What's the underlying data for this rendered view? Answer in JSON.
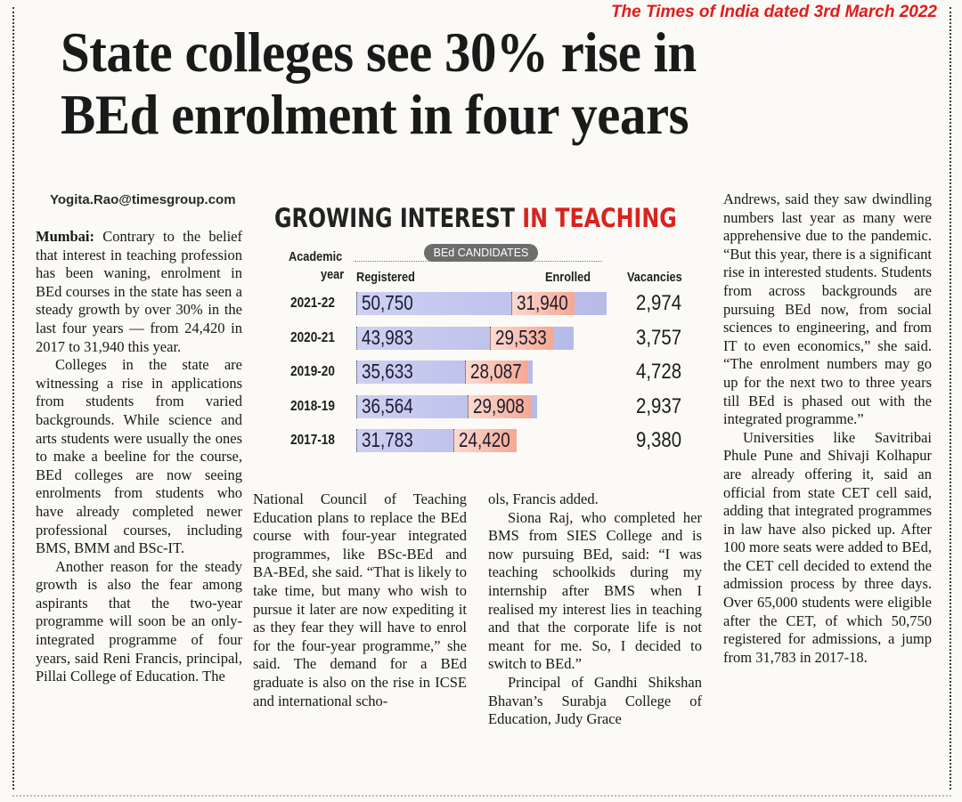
{
  "source_line": "The Times of India dated 3rd March 2022",
  "headline": {
    "line1": "State colleges see 30% rise in",
    "line2": "BEd enrolment in four years"
  },
  "byline": "Yogita.Rao@timesgroup.com",
  "chart_data": {
    "type": "bar",
    "title_part1": "GROWING INTEREST",
    "title_part2": " IN TEACHING",
    "group_label": "BEd CANDIDATES",
    "col_headers": {
      "academic": "Academic",
      "year": "year",
      "registered": "Registered",
      "enrolled": "Enrolled",
      "vacancies": "Vacancies"
    },
    "categories": [
      "2021-22",
      "2020-21",
      "2019-20",
      "2018-19",
      "2017-18"
    ],
    "series": [
      {
        "name": "Registered",
        "values": [
          50750,
          43983,
          35633,
          36564,
          31783
        ],
        "labels": [
          "50,750",
          "43,983",
          "35,633",
          "36,564",
          "31,783"
        ]
      },
      {
        "name": "Enrolled",
        "values": [
          31940,
          29533,
          28087,
          29908,
          24420
        ],
        "labels": [
          "31,940",
          "29,533",
          "28,087",
          "29,908",
          "24,420"
        ]
      }
    ],
    "vacancies": [
      "2,974",
      "3,757",
      "4,728",
      "2,937",
      "9,380"
    ],
    "colors": {
      "registered": "#b6bbea",
      "enrolled": "#f4a893",
      "title_red": "#d8231f"
    }
  },
  "body": {
    "col1": {
      "dateline": "Mumbai:",
      "p1": " Contrary to the belief that interest in teaching profession has been waning, enrolment in BEd courses in the state has seen a steady growth by over 30% in the last four years — from 24,420 in 2017 to 31,940 this year.",
      "p2": "Colleges in the state are witnessing a rise in applications from students from varied backgrounds. While science and arts students were usually the ones to make a beeline for the course, BEd colleges are now seeing enrolments from students who have already completed newer professional courses, including BMS, BMM and BSc-IT.",
      "p3": "Another reason for the steady growth is also the fear among aspirants that the two-year programme will soon be an only-integrated programme of four years, said Reni Francis, principal, Pillai College of Education. The"
    },
    "col2": {
      "p1": "National Council of Teaching Education plans to replace the BEd course with four-year integrated programmes, like BSc-BEd and BA-BEd, she said. “That is likely to take time, but many who wish to pursue it later are now expediting it as they fear they will have to enrol for the four-year programme,” she said. The demand for a BEd graduate is also on the rise in ICSE and international scho-"
    },
    "col3": {
      "p1": "ols, Francis added.",
      "p2": "Siona Raj, who completed her BMS from SIES College and is now pursuing BEd, said: “I was teaching schoolkids during my internship after BMS when I realised my interest lies in teaching and that the corporate life is not meant for me. So, I decided to switch to BEd.”",
      "p3": "Principal of Gandhi Shikshan Bhavan’s Surabja College of Education, Judy Grace"
    },
    "col4": {
      "p1": "Andrews, said they saw dwindling numbers last year as many were apprehensive due to the pandemic. “But this year, there is a significant rise in interested students. Students from across backgrounds are pursuing BEd now, from social sciences to engineering, and from IT to even economics,” she said. “The enrolment numbers may go up for the next two to three years till BEd is phased out with the integrated programme.”",
      "p2": "Universities like Savitribai Phule Pune and Shivaji Kolhapur are already offering it, said an official from state CET cell said, adding that integrated programmes in law have also picked up. After 100 more seats were added to BEd, the CET cell decided to extend the admission process by three days. Over 65,000 students were eligible after the CET, of which 50,750 registered for admissions, a jump from 31,783 in 2017-18."
    }
  }
}
